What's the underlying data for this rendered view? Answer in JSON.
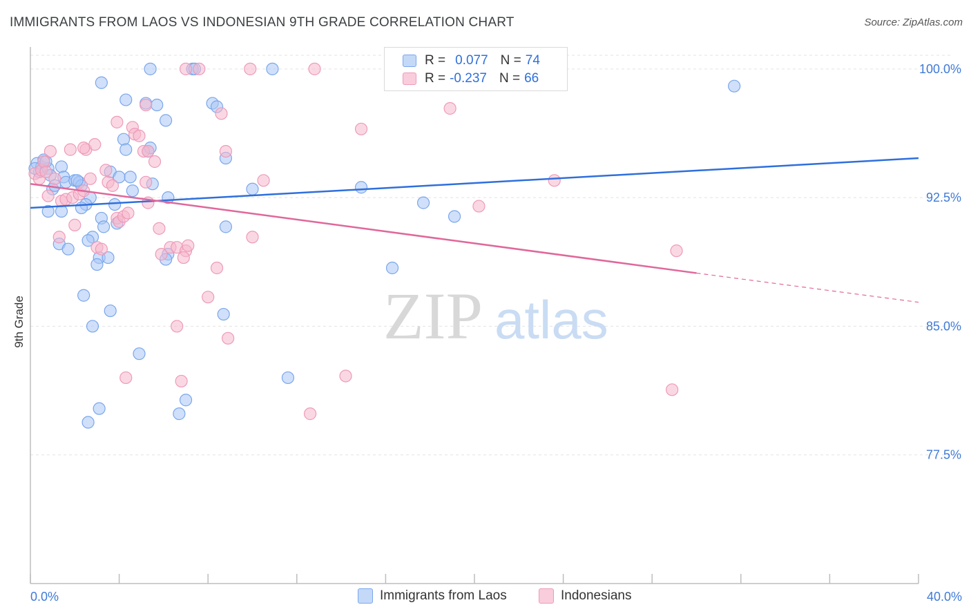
{
  "title": "IMMIGRANTS FROM LAOS VS INDONESIAN 9TH GRADE CORRELATION CHART",
  "source": "Source: ZipAtlas.com",
  "watermark": {
    "zip": "ZIP",
    "atlas": "atlas"
  },
  "legend": {
    "r_label": "R =",
    "n_label": "N =",
    "entries": [
      {
        "r": "0.077",
        "n": "74",
        "color": "#a9c6f5"
      },
      {
        "r": "-0.237",
        "n": "66",
        "color": "#f6b8cc"
      }
    ]
  },
  "bottom_legend": [
    "Immigrants from Laos",
    "Indonesians"
  ],
  "chart_data": {
    "type": "scatter",
    "ylabel": "9th Grade",
    "xlim": [
      0.0,
      40.0
    ],
    "ylim": [
      70.0,
      100.8
    ],
    "x_tick_labels": [
      "0.0%",
      "40.0%"
    ],
    "y_ticks": [
      77.5,
      85.0,
      92.5,
      100.0
    ],
    "y_tick_labels": [
      "77.5%",
      "85.0%",
      "92.5%",
      "100.0%"
    ],
    "grid": true,
    "legend_position": "top-center",
    "colors": {
      "laos": "#2e6fdc",
      "laos_fill": "#a9c6f5",
      "indo": "#e0679a",
      "indo_fill": "#f6b8cc"
    },
    "series": [
      {
        "name": "Immigrants from Laos",
        "trend": {
          "x0": 0.0,
          "y0": 91.9,
          "x1": 40.0,
          "y1": 94.8
        },
        "points": [
          [
            0.3,
            94.5
          ],
          [
            0.5,
            94.3
          ],
          [
            0.6,
            94.7
          ],
          [
            0.4,
            94.0
          ],
          [
            0.8,
            94.2
          ],
          [
            0.9,
            93.8
          ],
          [
            1.0,
            93.0
          ],
          [
            1.4,
            94.3
          ],
          [
            1.5,
            93.7
          ],
          [
            1.6,
            93.4
          ],
          [
            2.0,
            93.5
          ],
          [
            2.2,
            93.4
          ],
          [
            2.3,
            93.2
          ],
          [
            2.7,
            92.5
          ],
          [
            2.5,
            92.1
          ],
          [
            2.3,
            91.9
          ],
          [
            0.8,
            91.7
          ],
          [
            1.4,
            91.7
          ],
          [
            3.2,
            91.3
          ],
          [
            3.3,
            90.8
          ],
          [
            2.8,
            90.2
          ],
          [
            2.6,
            90.0
          ],
          [
            1.3,
            89.8
          ],
          [
            1.7,
            89.5
          ],
          [
            3.1,
            89.0
          ],
          [
            3.5,
            89.0
          ],
          [
            3.0,
            88.6
          ],
          [
            3.8,
            92.1
          ],
          [
            3.9,
            91.0
          ],
          [
            3.6,
            94.0
          ],
          [
            4.0,
            93.7
          ],
          [
            4.5,
            93.7
          ],
          [
            4.6,
            92.9
          ],
          [
            4.2,
            95.9
          ],
          [
            4.3,
            95.3
          ],
          [
            5.3,
            95.2
          ],
          [
            5.4,
            95.4
          ],
          [
            5.5,
            93.3
          ],
          [
            6.2,
            92.5
          ],
          [
            6.1,
            97.0
          ],
          [
            5.2,
            98.0
          ],
          [
            5.7,
            97.9
          ],
          [
            4.3,
            98.2
          ],
          [
            3.2,
            99.2
          ],
          [
            5.4,
            100.0
          ],
          [
            7.3,
            100.0
          ],
          [
            7.4,
            100.0
          ],
          [
            10.9,
            100.0
          ],
          [
            8.2,
            98.0
          ],
          [
            8.4,
            97.8
          ],
          [
            8.8,
            94.8
          ],
          [
            10.0,
            93.0
          ],
          [
            8.8,
            90.8
          ],
          [
            6.2,
            89.2
          ],
          [
            6.1,
            88.9
          ],
          [
            2.4,
            86.8
          ],
          [
            3.6,
            85.9
          ],
          [
            2.8,
            85.0
          ],
          [
            8.7,
            85.7
          ],
          [
            4.9,
            83.4
          ],
          [
            11.6,
            82.0
          ],
          [
            7.0,
            80.7
          ],
          [
            6.7,
            79.9
          ],
          [
            3.1,
            80.2
          ],
          [
            2.6,
            79.4
          ],
          [
            14.9,
            93.1
          ],
          [
            17.7,
            92.2
          ],
          [
            19.1,
            91.4
          ],
          [
            16.3,
            88.4
          ],
          [
            31.7,
            99.0
          ],
          [
            0.2,
            94.2
          ],
          [
            0.7,
            94.6
          ],
          [
            1.1,
            93.2
          ],
          [
            2.1,
            93.5
          ]
        ]
      },
      {
        "name": "Indonesians",
        "trend": {
          "x0": 0.0,
          "y0": 93.3,
          "x1": 30.0,
          "y1": 88.1,
          "dash_to_x": 40.0,
          "dash_to_y": 86.4
        },
        "points": [
          [
            0.2,
            93.9
          ],
          [
            0.4,
            93.6
          ],
          [
            0.5,
            94.1
          ],
          [
            0.6,
            94.6
          ],
          [
            0.9,
            95.2
          ],
          [
            0.7,
            94.0
          ],
          [
            1.1,
            93.6
          ],
          [
            0.8,
            92.6
          ],
          [
            1.4,
            92.3
          ],
          [
            1.6,
            92.4
          ],
          [
            1.8,
            95.3
          ],
          [
            1.9,
            92.5
          ],
          [
            2.2,
            92.7
          ],
          [
            2.4,
            92.9
          ],
          [
            2.5,
            95.3
          ],
          [
            2.4,
            95.4
          ],
          [
            2.7,
            93.6
          ],
          [
            2.9,
            95.6
          ],
          [
            3.4,
            94.1
          ],
          [
            3.5,
            93.4
          ],
          [
            3.7,
            93.2
          ],
          [
            3.9,
            91.3
          ],
          [
            4.0,
            91.1
          ],
          [
            4.2,
            91.4
          ],
          [
            4.4,
            91.6
          ],
          [
            3.9,
            96.9
          ],
          [
            4.6,
            96.6
          ],
          [
            4.7,
            96.2
          ],
          [
            4.9,
            96.1
          ],
          [
            5.1,
            95.2
          ],
          [
            5.3,
            95.2
          ],
          [
            5.2,
            93.4
          ],
          [
            5.6,
            94.6
          ],
          [
            5.3,
            92.2
          ],
          [
            5.8,
            90.7
          ],
          [
            5.9,
            89.2
          ],
          [
            6.3,
            89.6
          ],
          [
            6.6,
            89.6
          ],
          [
            7.0,
            89.4
          ],
          [
            7.1,
            89.7
          ],
          [
            6.9,
            89.0
          ],
          [
            1.3,
            90.2
          ],
          [
            2.0,
            90.9
          ],
          [
            3.0,
            89.6
          ],
          [
            3.2,
            89.5
          ],
          [
            5.2,
            97.9
          ],
          [
            7.6,
            100.0
          ],
          [
            7.0,
            100.0
          ],
          [
            9.9,
            100.0
          ],
          [
            12.8,
            100.0
          ],
          [
            8.6,
            97.4
          ],
          [
            8.8,
            95.2
          ],
          [
            10.5,
            93.5
          ],
          [
            10.0,
            90.2
          ],
          [
            8.4,
            88.4
          ],
          [
            8.0,
            86.7
          ],
          [
            8.9,
            84.3
          ],
          [
            6.6,
            85.0
          ],
          [
            6.8,
            81.8
          ],
          [
            4.3,
            82.0
          ],
          [
            14.2,
            82.1
          ],
          [
            12.6,
            79.9
          ],
          [
            14.9,
            96.5
          ],
          [
            18.9,
            97.7
          ],
          [
            23.6,
            93.5
          ],
          [
            20.2,
            92.0
          ]
        ]
      },
      {
        "name": "",
        "points": [
          [
            29.1,
            89.4
          ],
          [
            28.9,
            81.3
          ]
        ]
      }
    ]
  }
}
